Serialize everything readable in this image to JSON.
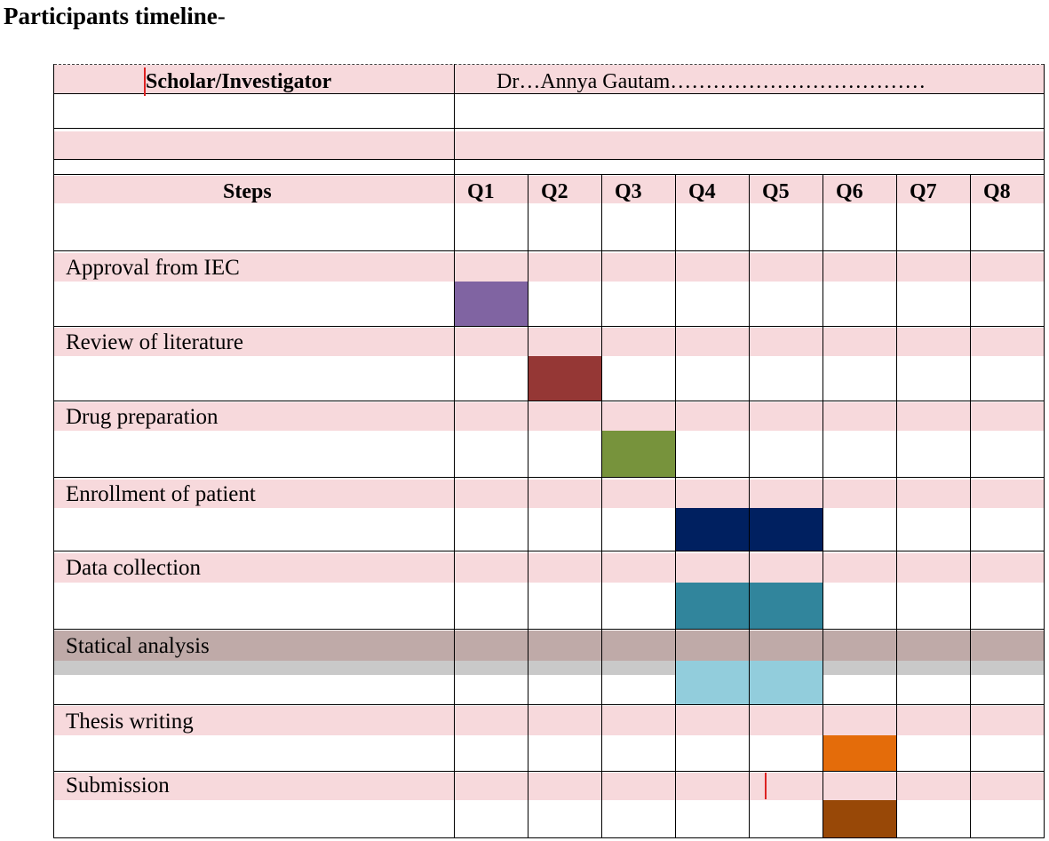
{
  "title": "Participants timeline",
  "title_suffix": "-",
  "investigator": {
    "label": "Scholar/Investigator",
    "value": "Dr…Annya Gautam………………………………"
  },
  "header": {
    "steps_label": "Steps",
    "quarters": [
      "Q1",
      "Q2",
      "Q3",
      "Q4",
      "Q5",
      "Q6",
      "Q7",
      "Q8"
    ]
  },
  "steps": [
    {
      "label": "Approval from IEC",
      "quarters": [
        "Q1"
      ],
      "color": "#8064a2"
    },
    {
      "label": "Review of literature",
      "quarters": [
        "Q2"
      ],
      "color": "#953735"
    },
    {
      "label": "Drug preparation",
      "quarters": [
        "Q3"
      ],
      "color": "#77933c"
    },
    {
      "label": "Enrollment of patient",
      "quarters": [
        "Q4",
        "Q5"
      ],
      "color": "#002060"
    },
    {
      "label": "Data collection",
      "quarters": [
        "Q4",
        "Q5"
      ],
      "color": "#31859c"
    },
    {
      "label": "Statical analysis",
      "quarters": [
        "Q4",
        "Q5"
      ],
      "color": "#92cddc"
    },
    {
      "label": "Thesis writing",
      "quarters": [
        "Q6"
      ],
      "color": "#e46c0a"
    },
    {
      "label": "Submission",
      "quarters": [
        "Q6"
      ],
      "color": "#984807"
    }
  ],
  "colors": {
    "row_shading": "#f7d9dc",
    "analysis_shading": "#bfaaa8"
  }
}
